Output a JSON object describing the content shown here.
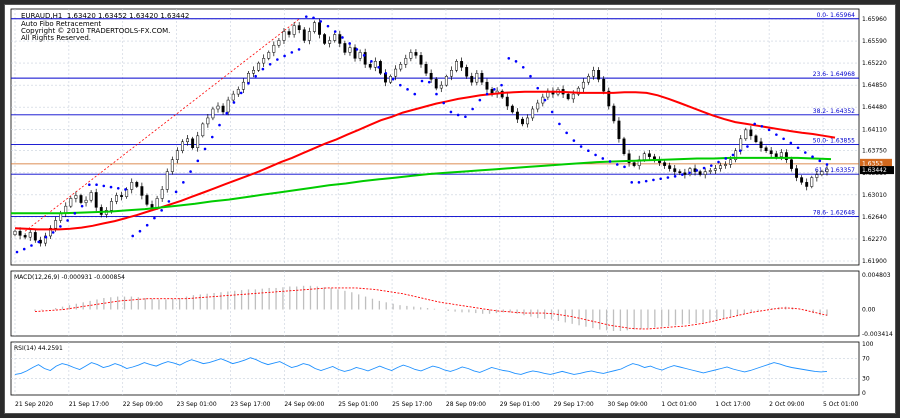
{
  "header": {
    "symbol": "EURAUD,H1",
    "ohlc": "1.63420 1.63452 1.63420 1.63442",
    "indicator": "Auto Fibo Retracement",
    "copyright": "Copyright © 2010 TRADERTOOLS-FX.COM.",
    "rights": "All Rights Reserved."
  },
  "colors": {
    "background": "#ffffff",
    "grid": "#c8d0dc",
    "candle": "#000000",
    "sma_fast": "#ff0000",
    "sma_slow": "#00cc00",
    "psar": "#0000ff",
    "fibo": "#0000cd",
    "price_line": "#d2691e",
    "macd_hist": "#bfbfbf",
    "macd_signal": "#ff0000",
    "rsi": "#1e90ff"
  },
  "chart_data": [
    {
      "type": "candlestick",
      "panel": "main",
      "ylim": [
        1.619,
        1.6596
      ],
      "price_ticks": [
        "1.65960",
        "1.65590",
        "1.65220",
        "1.64850",
        "1.64480",
        "1.64110",
        "1.63750",
        "1.63380",
        "1.63010",
        "1.62640",
        "1.62270",
        "1.61900"
      ],
      "current_price": "1.63442",
      "current_price_value": 1.63442,
      "marker_label": "1.6353",
      "marker_value": 1.6353,
      "time_labels": [
        "21 Sep 2020",
        "21 Sep 17:00",
        "22 Sep 09:00",
        "23 Sep 01:00",
        "23 Sep 17:00",
        "24 Sep 09:00",
        "25 Sep 01:00",
        "25 Sep 17:00",
        "28 Sep 09:00",
        "29 Sep 01:00",
        "29 Sep 17:00",
        "30 Sep 09:00",
        "1 Oct 01:00",
        "1 Oct 17:00",
        "2 Oct 09:00",
        "5 Oct 01:00"
      ],
      "fibo_levels": [
        {
          "label": "0.0- 1.65964",
          "value": 1.65964
        },
        {
          "label": "23.6- 1.64968",
          "value": 1.64968
        },
        {
          "label": "38.2- 1.64352",
          "value": 1.64352
        },
        {
          "label": "50.0- 1.63855",
          "value": 1.63855
        },
        {
          "label": "61.8 1.63357",
          "value": 1.63357
        },
        {
          "label": "78.6- 1.62648",
          "value": 1.62648
        }
      ],
      "closes": [
        1.624,
        1.6233,
        1.623,
        1.6238,
        1.6225,
        1.622,
        1.6232,
        1.6245,
        1.6258,
        1.627,
        1.6282,
        1.6295,
        1.63,
        1.6288,
        1.6292,
        1.6305,
        1.628,
        1.6268,
        1.6275,
        1.629,
        1.63,
        1.6298,
        1.631,
        1.6322,
        1.6315,
        1.63,
        1.6285,
        1.628,
        1.6295,
        1.631,
        1.634,
        1.636,
        1.6375,
        1.639,
        1.6395,
        1.638,
        1.64,
        1.642,
        1.643,
        1.6445,
        1.645,
        1.644,
        1.646,
        1.647,
        1.6478,
        1.649,
        1.6505,
        1.651,
        1.6522,
        1.653,
        1.654,
        1.6552,
        1.656,
        1.6575,
        1.657,
        1.6585,
        1.6578,
        1.656,
        1.6575,
        1.659,
        1.657,
        1.6555,
        1.656,
        1.657,
        1.6555,
        1.654,
        1.6548,
        1.653,
        1.654,
        1.652,
        1.6515,
        1.6525,
        1.6505,
        1.649,
        1.65,
        1.6512,
        1.652,
        1.653,
        1.654,
        1.6535,
        1.652,
        1.6505,
        1.6495,
        1.648,
        1.6485,
        1.65,
        1.651,
        1.6525,
        1.6515,
        1.65,
        1.649,
        1.6505,
        1.649,
        1.6478,
        1.647,
        1.6475,
        1.6465,
        1.645,
        1.644,
        1.6428,
        1.642,
        1.643,
        1.6445,
        1.6455,
        1.6465,
        1.6475,
        1.647,
        1.6478,
        1.647,
        1.6462,
        1.647,
        1.648,
        1.649,
        1.65,
        1.651,
        1.6495,
        1.6475,
        1.645,
        1.6425,
        1.6395,
        1.637,
        1.6355,
        1.635,
        1.636,
        1.637,
        1.6365,
        1.636,
        1.6355,
        1.635,
        1.6345,
        1.634,
        1.6338,
        1.6335,
        1.6345,
        1.634,
        1.6335,
        1.634,
        1.6342,
        1.6345,
        1.635,
        1.6352,
        1.636,
        1.6375,
        1.6395,
        1.641,
        1.64,
        1.639,
        1.638,
        1.6375,
        1.637,
        1.6365,
        1.6372,
        1.636,
        1.6345,
        1.633,
        1.6322,
        1.6315,
        1.633,
        1.6335,
        1.634,
        1.6344
      ],
      "sma_fast": [
        1.6245,
        1.6244,
        1.6243,
        1.6243,
        1.6243,
        1.6244,
        1.6246,
        1.6249,
        1.6253,
        1.6257,
        1.6262,
        1.6267,
        1.6273,
        1.6279,
        1.6285,
        1.6291,
        1.6298,
        1.6305,
        1.6312,
        1.6319,
        1.6326,
        1.6333,
        1.634,
        1.6348,
        1.6356,
        1.6363,
        1.6371,
        1.6379,
        1.6387,
        1.6394,
        1.6402,
        1.641,
        1.6418,
        1.6426,
        1.6432,
        1.6439,
        1.6444,
        1.6449,
        1.6454,
        1.6458,
        1.6462,
        1.6465,
        1.6468,
        1.647,
        1.6472,
        1.6473,
        1.6474,
        1.6474,
        1.6474,
        1.6474,
        1.6473,
        1.6472,
        1.6472,
        1.6472,
        1.6472,
        1.6473,
        1.6473,
        1.6472,
        1.6468,
        1.6462,
        1.6455,
        1.6448,
        1.6441,
        1.6434,
        1.6428,
        1.6423,
        1.642,
        1.6417,
        1.6414,
        1.6411,
        1.6408,
        1.6405,
        1.6403,
        1.64,
        1.6397
      ],
      "sma_slow": [
        1.627,
        1.627,
        1.627,
        1.627,
        1.6271,
        1.6272,
        1.6273,
        1.6275,
        1.6277,
        1.628,
        1.6283,
        1.6286,
        1.629,
        1.6293,
        1.6297,
        1.6301,
        1.6305,
        1.6309,
        1.6313,
        1.6317,
        1.632,
        1.6324,
        1.6327,
        1.633,
        1.6333,
        1.6336,
        1.6338,
        1.634,
        1.6342,
        1.6344,
        1.6346,
        1.6348,
        1.635,
        1.6352,
        1.6354,
        1.6356,
        1.6357,
        1.6358,
        1.6359,
        1.636,
        1.6361,
        1.6362,
        1.6362,
        1.6363,
        1.6363,
        1.6363,
        1.6363,
        1.6363,
        1.6362,
        1.6361
      ],
      "psar": [
        1.6205,
        1.621,
        1.6216,
        1.6222,
        1.623,
        1.6238,
        1.6248,
        1.6258,
        1.627,
        1.6282,
        1.6318,
        1.6318,
        1.6316,
        1.6314,
        1.6312,
        1.631,
        1.6232,
        1.624,
        1.625,
        1.6262,
        1.6275,
        1.629,
        1.6306,
        1.6322,
        1.634,
        1.6358,
        1.6378,
        1.6398,
        1.6418,
        1.6438,
        1.6456,
        1.6472,
        1.6488,
        1.65,
        1.6512,
        1.652,
        1.6528,
        1.6534,
        1.654,
        1.6545,
        1.66,
        1.6598,
        1.6592,
        1.6584,
        1.6575,
        1.6565,
        1.6555,
        1.6545,
        1.6535,
        1.6525,
        1.6515,
        1.6505,
        1.6495,
        1.6485,
        1.6478,
        1.647,
        1.6492,
        1.649,
        1.647,
        1.6455,
        1.644,
        1.6435,
        1.6432,
        1.6445,
        1.646,
        1.647,
        1.6478,
        1.6485,
        1.653,
        1.6525,
        1.6515,
        1.65,
        1.648,
        1.646,
        1.644,
        1.642,
        1.6405,
        1.6392,
        1.6382,
        1.6375,
        1.6368,
        1.6362,
        1.6357,
        1.6352,
        1.6348,
        1.6322,
        1.6322,
        1.6324,
        1.6326,
        1.6328,
        1.633,
        1.6332,
        1.6335,
        1.6338,
        1.6342,
        1.6346,
        1.635,
        1.6356,
        1.6362,
        1.6368,
        1.6375,
        1.6382,
        1.642,
        1.6416,
        1.641,
        1.6402,
        1.6395,
        1.6388,
        1.638,
        1.6372,
        1.6365,
        1.6358,
        1.6352
      ]
    },
    {
      "type": "histogram",
      "panel": "macd",
      "label": "MACD(12,26,9) -0.000931 -0.000854",
      "ylim": [
        -0.003414,
        0.004803
      ],
      "ticks": [
        "0.004803",
        "0.00",
        "-0.003414"
      ],
      "tick_values": [
        0.004803,
        0.0,
        -0.003414
      ],
      "histogram": [
        -0.0002,
        -0.0001,
        0.0,
        0.0002,
        0.0004,
        0.0006,
        0.0008,
        0.001,
        0.0012,
        0.0014,
        0.0016,
        0.0017,
        0.0018,
        0.0018,
        0.0018,
        0.0017,
        0.0016,
        0.0015,
        0.0014,
        0.0014,
        0.0015,
        0.0016,
        0.0018,
        0.002,
        0.0021,
        0.0022,
        0.0023,
        0.0024,
        0.0025,
        0.0026,
        0.0027,
        0.0028,
        0.0028,
        0.0029,
        0.003,
        0.003,
        0.0031,
        0.0032,
        0.0032,
        0.0033,
        0.0033,
        0.0032,
        0.0031,
        0.003,
        0.0028,
        0.0026,
        0.0024,
        0.0021,
        0.0018,
        0.0015,
        0.0012,
        0.001,
        0.0008,
        0.0006,
        0.0005,
        0.0004,
        0.0003,
        0.0002,
        0.0001,
        0.0,
        -0.0002,
        -0.0003,
        -0.0004,
        -0.0004,
        -0.0005,
        -0.0006,
        -0.0006,
        -0.0005,
        -0.0004,
        -0.0004,
        -0.0006,
        -0.0008,
        -0.001,
        -0.0012,
        -0.0013,
        -0.0014,
        -0.0016,
        -0.0018,
        -0.002,
        -0.0022,
        -0.0024,
        -0.0026,
        -0.0028,
        -0.0029,
        -0.003,
        -0.003,
        -0.0029,
        -0.0028,
        -0.0027,
        -0.0026,
        -0.0025,
        -0.0024,
        -0.0023,
        -0.0022,
        -0.0021,
        -0.002,
        -0.0019,
        -0.0018,
        -0.0016,
        -0.0014,
        -0.0012,
        -0.001,
        -0.0008,
        -0.0006,
        -0.0004,
        -0.0002,
        0.0,
        0.0002,
        0.0003,
        0.0004,
        0.0003,
        0.0001,
        -0.0002,
        -0.0005,
        -0.0008,
        -0.0009
      ],
      "signal": [
        -0.0003,
        -0.0002,
        -0.0001,
        0.0,
        0.0002,
        0.0004,
        0.0006,
        0.0008,
        0.001,
        0.0012,
        0.0013,
        0.0014,
        0.0015,
        0.0015,
        0.0015,
        0.0015,
        0.0015,
        0.0016,
        0.0017,
        0.0018,
        0.0019,
        0.002,
        0.0021,
        0.0022,
        0.0023,
        0.0024,
        0.0025,
        0.0026,
        0.0027,
        0.0028,
        0.0029,
        0.003,
        0.003,
        0.003,
        0.003,
        0.0029,
        0.0028,
        0.0026,
        0.0024,
        0.0022,
        0.0019,
        0.0016,
        0.0013,
        0.001,
        0.0008,
        0.0006,
        0.0004,
        0.0002,
        0.0,
        -0.0002,
        -0.0003,
        -0.0004,
        -0.0005,
        -0.0005,
        -0.0005,
        -0.0006,
        -0.0008,
        -0.001,
        -0.0013,
        -0.0016,
        -0.0019,
        -0.0022,
        -0.0024,
        -0.0026,
        -0.0027,
        -0.0027,
        -0.0026,
        -0.0025,
        -0.0024,
        -0.0023,
        -0.0021,
        -0.0019,
        -0.0016,
        -0.0013,
        -0.001,
        -0.0007,
        -0.0004,
        -0.0002,
        0.0,
        0.0002,
        0.0002,
        0.0001,
        -0.0002,
        -0.0005,
        -0.0008
      ]
    },
    {
      "type": "line",
      "panel": "rsi",
      "label": "RSI(14) 44.2591",
      "ylim": [
        0,
        100
      ],
      "ticks": [
        "100",
        "70",
        "30",
        "0"
      ],
      "tick_values": [
        100,
        70,
        30,
        0
      ],
      "values": [
        38,
        40,
        45,
        52,
        58,
        50,
        46,
        55,
        60,
        57,
        52,
        48,
        55,
        62,
        58,
        52,
        55,
        60,
        56,
        50,
        53,
        57,
        62,
        58,
        55,
        60,
        64,
        61,
        57,
        63,
        68,
        64,
        60,
        62,
        66,
        70,
        65,
        60,
        63,
        67,
        72,
        68,
        62,
        58,
        61,
        64,
        58,
        52,
        55,
        60,
        57,
        50,
        46,
        50,
        54,
        48,
        44,
        47,
        52,
        49,
        45,
        50,
        55,
        50,
        46,
        52,
        57,
        53,
        48,
        45,
        50,
        55,
        52,
        47,
        44,
        48,
        53,
        50,
        45,
        42,
        47,
        52,
        49,
        46,
        44,
        40,
        38,
        42,
        45,
        43,
        40,
        38,
        41,
        44,
        41,
        38,
        40,
        43,
        45,
        42,
        40,
        43,
        46,
        49,
        55,
        60,
        57,
        52,
        55,
        50,
        47,
        52,
        56,
        53,
        50,
        47,
        44,
        41,
        44,
        47,
        50,
        53,
        49,
        46,
        43,
        46,
        50,
        54,
        58,
        62,
        59,
        55,
        52,
        50,
        48,
        46,
        44,
        43,
        44
      ]
    }
  ]
}
